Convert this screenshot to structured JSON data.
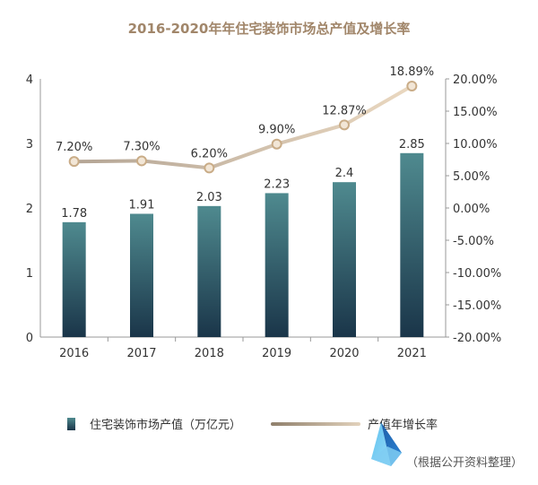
{
  "chart_data": {
    "type": "bar",
    "title": "2016-2020年年住宅装饰市场总产值及增长率",
    "categories": [
      "2016",
      "2017",
      "2018",
      "2019",
      "2020",
      "2021"
    ],
    "left_axis": {
      "ylim": [
        0,
        4
      ],
      "ticks": [
        "0",
        "1",
        "2",
        "3",
        "4"
      ]
    },
    "right_axis": {
      "ylim": [
        -20,
        20
      ],
      "ticks": [
        "-20.00%",
        "-15.00%",
        "-10.00%",
        "-5.00%",
        "0.00%",
        "5.00%",
        "10.00%",
        "15.00%",
        "20.00%"
      ]
    },
    "series": [
      {
        "name": "住宅装饰市场产值（万亿元）",
        "type": "bar",
        "axis": "left",
        "values": [
          1.78,
          1.91,
          2.03,
          2.23,
          2.4,
          2.85
        ],
        "labels": [
          "1.78",
          "1.91",
          "2.03",
          "2.23",
          "2.4",
          "2.85"
        ]
      },
      {
        "name": "产值年增长率",
        "type": "line",
        "axis": "right",
        "values": [
          7.2,
          7.3,
          6.2,
          9.9,
          12.87,
          18.89
        ],
        "labels": [
          "7.20%",
          "7.30%",
          "6.20%",
          "9.90%",
          "12.87%",
          "18.89%"
        ]
      }
    ],
    "grid": false,
    "legend_position": "bottom",
    "note": "（根据公开资料整理）",
    "colors": {
      "bar_top": "#4f8a8f",
      "bar_bottom": "#1a3549",
      "line": "#d6c1a5",
      "marker_fill": "#f2e6d6",
      "marker_stroke": "#c9ac87",
      "title": "#a1866a",
      "axis": "#999999"
    }
  }
}
